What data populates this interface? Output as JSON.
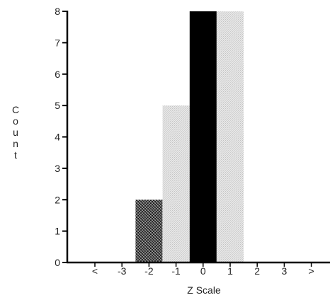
{
  "chart_data": {
    "type": "bar",
    "categories": [
      "<",
      "-3",
      "-2",
      "-1",
      "0",
      "1",
      "2",
      "3",
      ">"
    ],
    "values": [
      0,
      0,
      2,
      5,
      8,
      8,
      0,
      0,
      0
    ],
    "bar_fills": [
      "#b8b8b8",
      "#b8b8b8",
      "hatch-dark",
      "stipple-light",
      "#000000",
      "stipple-light",
      "#b8b8b8",
      "#b8b8b8",
      "#b8b8b8"
    ],
    "xlabel": "Z Scale",
    "ylabel": "Count",
    "ylim": [
      0,
      8
    ],
    "yticks": [
      0,
      1,
      2,
      3,
      4,
      5,
      6,
      7,
      8
    ],
    "grid": false
  }
}
